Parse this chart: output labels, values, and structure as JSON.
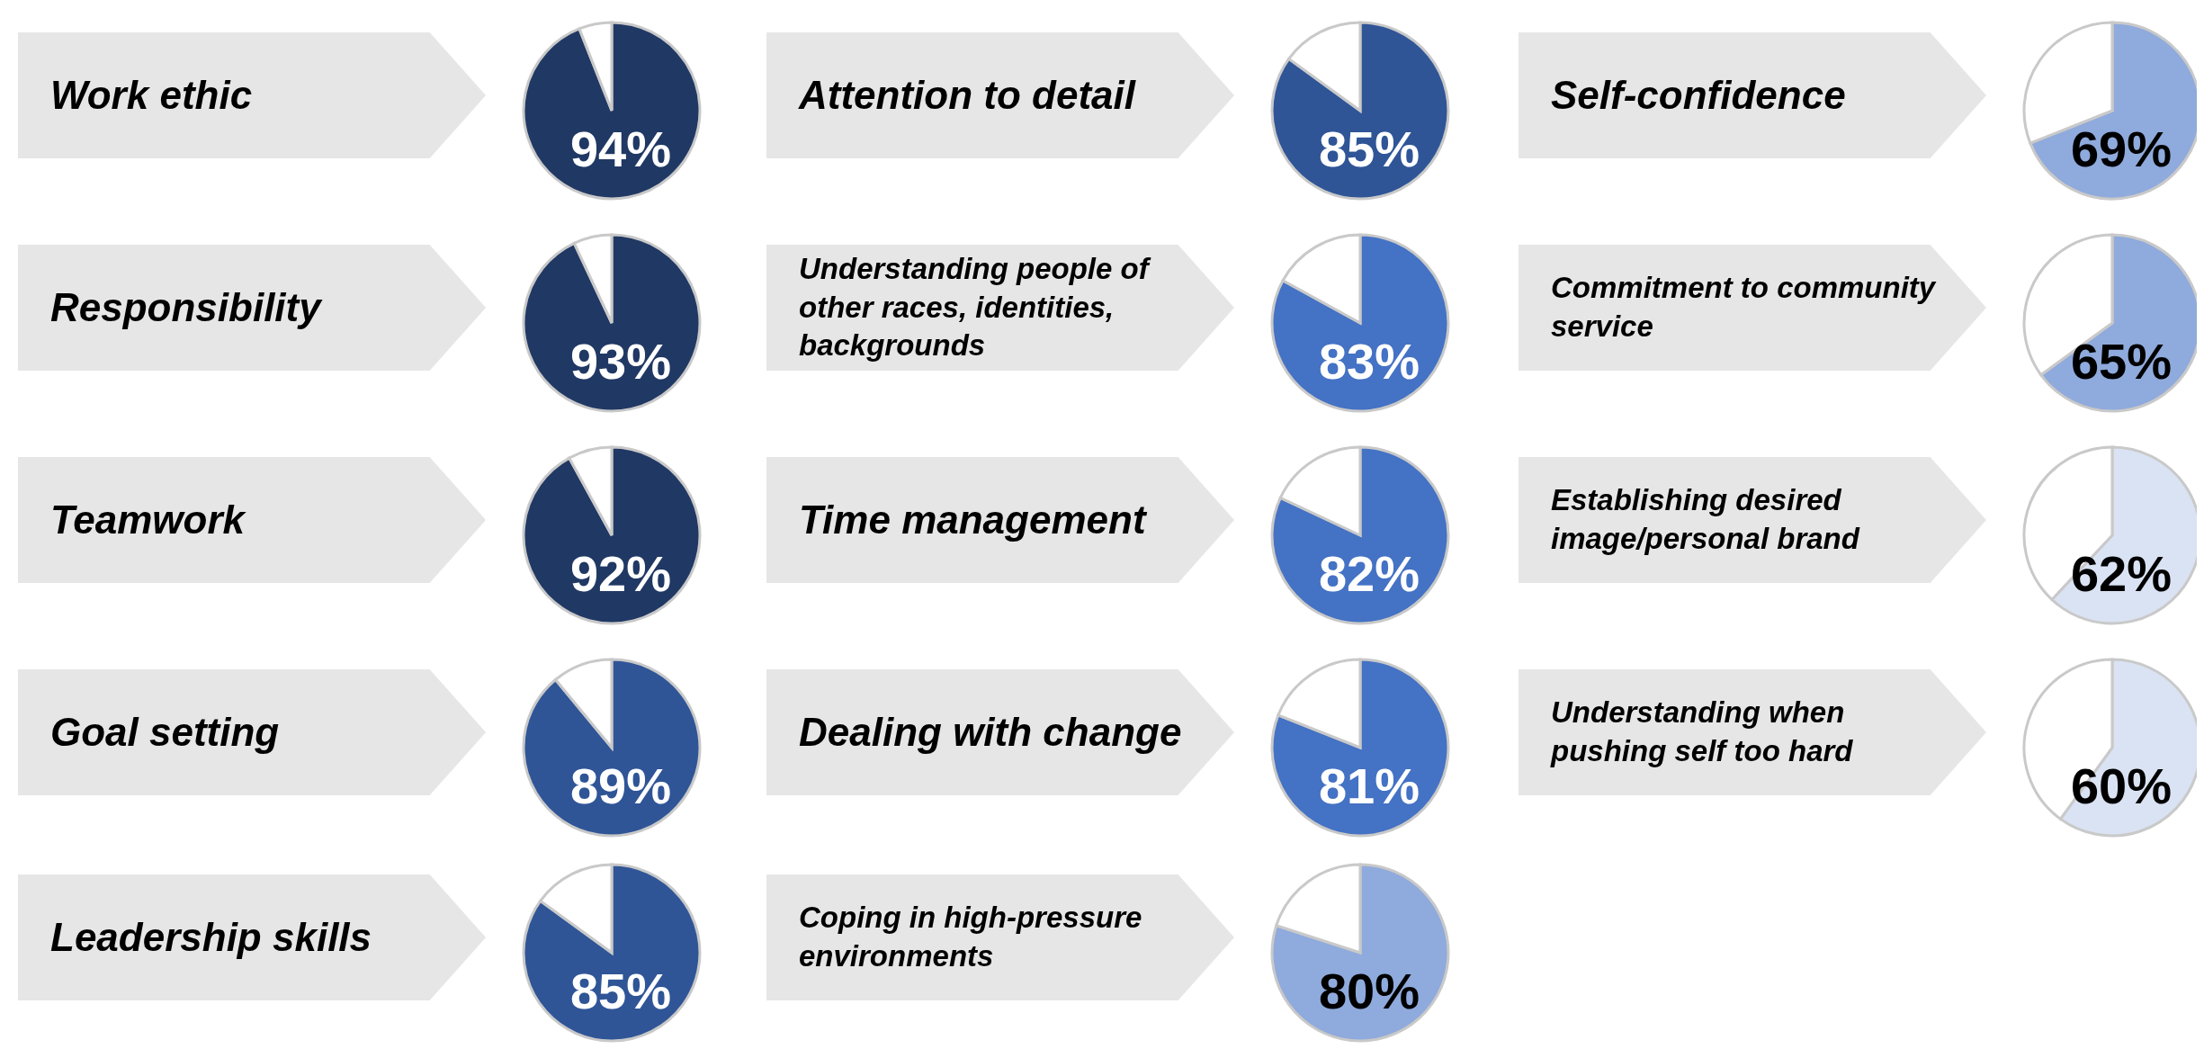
{
  "chart_data": [
    {
      "type": "pie",
      "title": "Work ethic",
      "categories": [
        null,
        null
      ],
      "values": [
        94,
        6
      ],
      "colors": [
        "#203864",
        "#ffffff"
      ],
      "value_labels": [
        "94%",
        null
      ]
    },
    {
      "type": "pie",
      "title": "Responsibility",
      "categories": [
        null,
        null
      ],
      "values": [
        93,
        7
      ],
      "colors": [
        "#203864",
        "#ffffff"
      ],
      "value_labels": [
        "93%",
        null
      ]
    },
    {
      "type": "pie",
      "title": "Teamwork",
      "categories": [
        null,
        null
      ],
      "values": [
        92,
        8
      ],
      "colors": [
        "#203864",
        "#ffffff"
      ],
      "value_labels": [
        "92%",
        null
      ]
    },
    {
      "type": "pie",
      "title": "Goal setting",
      "categories": [
        null,
        null
      ],
      "values": [
        89,
        11
      ],
      "colors": [
        "#2f5597",
        "#ffffff"
      ],
      "value_labels": [
        "89%",
        null
      ]
    },
    {
      "type": "pie",
      "title": "Leadership skills",
      "categories": [
        null,
        null
      ],
      "values": [
        85,
        15
      ],
      "colors": [
        "#2f5597",
        "#ffffff"
      ],
      "value_labels": [
        "85%",
        null
      ]
    },
    {
      "type": "pie",
      "title": "Attention to detail",
      "categories": [
        null,
        null
      ],
      "values": [
        85,
        15
      ],
      "colors": [
        "#2f5597",
        "#ffffff"
      ],
      "value_labels": [
        "85%",
        null
      ]
    },
    {
      "type": "pie",
      "title": "Understanding people of other races, identities, backgrounds",
      "categories": [
        null,
        null
      ],
      "values": [
        83,
        17
      ],
      "colors": [
        "#4472c4",
        "#ffffff"
      ],
      "value_labels": [
        "83%",
        null
      ]
    },
    {
      "type": "pie",
      "title": "Time management",
      "categories": [
        null,
        null
      ],
      "values": [
        82,
        18
      ],
      "colors": [
        "#4472c4",
        "#ffffff"
      ],
      "value_labels": [
        "82%",
        null
      ]
    },
    {
      "type": "pie",
      "title": "Dealing with change",
      "categories": [
        null,
        null
      ],
      "values": [
        81,
        19
      ],
      "colors": [
        "#4472c4",
        "#ffffff"
      ],
      "value_labels": [
        "81%",
        null
      ]
    },
    {
      "type": "pie",
      "title": "Coping in high-pressure environments",
      "categories": [
        null,
        null
      ],
      "values": [
        80,
        20
      ],
      "colors": [
        "#8faadc",
        "#ffffff"
      ],
      "value_labels": [
        "80%",
        null
      ]
    },
    {
      "type": "pie",
      "title": "Self-confidence",
      "categories": [
        null,
        null
      ],
      "values": [
        69,
        31
      ],
      "colors": [
        "#8faadc",
        "#ffffff"
      ],
      "value_labels": [
        "69%",
        null
      ]
    },
    {
      "type": "pie",
      "title": "Commitment to community service",
      "categories": [
        null,
        null
      ],
      "values": [
        65,
        35
      ],
      "colors": [
        "#8faadc",
        "#ffffff"
      ],
      "value_labels": [
        "65%",
        null
      ]
    },
    {
      "type": "pie",
      "title": "Establishing desired image/personal brand",
      "categories": [
        null,
        null
      ],
      "values": [
        62,
        38
      ],
      "colors": [
        "#dae3f3",
        "#ffffff"
      ],
      "value_labels": [
        "62%",
        null
      ]
    },
    {
      "type": "pie",
      "title": "Understanding when pushing self too hard",
      "categories": [
        null,
        null
      ],
      "values": [
        60,
        40
      ],
      "colors": [
        "#dae3f3",
        "#ffffff"
      ],
      "value_labels": [
        "60%",
        null
      ]
    }
  ]
}
